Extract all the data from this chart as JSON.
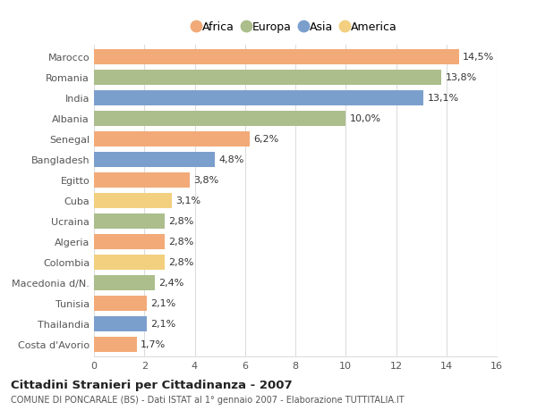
{
  "countries": [
    "Marocco",
    "Romania",
    "India",
    "Albania",
    "Senegal",
    "Bangladesh",
    "Egitto",
    "Cuba",
    "Ucraina",
    "Algeria",
    "Colombia",
    "Macedonia d/N.",
    "Tunisia",
    "Thailandia",
    "Costa d'Avorio"
  ],
  "values": [
    14.5,
    13.8,
    13.1,
    10.0,
    6.2,
    4.8,
    3.8,
    3.1,
    2.8,
    2.8,
    2.8,
    2.4,
    2.1,
    2.1,
    1.7
  ],
  "labels": [
    "14,5%",
    "13,8%",
    "13,1%",
    "10,0%",
    "6,2%",
    "4,8%",
    "3,8%",
    "3,1%",
    "2,8%",
    "2,8%",
    "2,8%",
    "2,4%",
    "2,1%",
    "2,1%",
    "1,7%"
  ],
  "continents": [
    "Africa",
    "Europa",
    "Asia",
    "Europa",
    "Africa",
    "Asia",
    "Africa",
    "America",
    "Europa",
    "Africa",
    "America",
    "Europa",
    "Africa",
    "Asia",
    "Africa"
  ],
  "colors": {
    "Africa": "#F2AA78",
    "Europa": "#ABBE8C",
    "Asia": "#7B9FCC",
    "America": "#F2D080"
  },
  "legend_order": [
    "Africa",
    "Europa",
    "Asia",
    "America"
  ],
  "legend_colors": [
    "#F2AA78",
    "#ABBE8C",
    "#7B9FCC",
    "#F2D080"
  ],
  "xlim": [
    0,
    16
  ],
  "xticks": [
    0,
    2,
    4,
    6,
    8,
    10,
    12,
    14,
    16
  ],
  "title_main": "Cittadini Stranieri per Cittadinanza - 2007",
  "title_sub": "COMUNE DI PONCARALE (BS) - Dati ISTAT al 1° gennaio 2007 - Elaborazione TUTTITALIA.IT",
  "bar_height": 0.72,
  "background_color": "#FFFFFF",
  "plot_bg_color": "#FFFFFF",
  "grid_color": "#DDDDDD",
  "label_fontsize": 8,
  "tick_fontsize": 8,
  "ytick_fontsize": 8,
  "title_fontsize": 9.5,
  "sub_fontsize": 7
}
